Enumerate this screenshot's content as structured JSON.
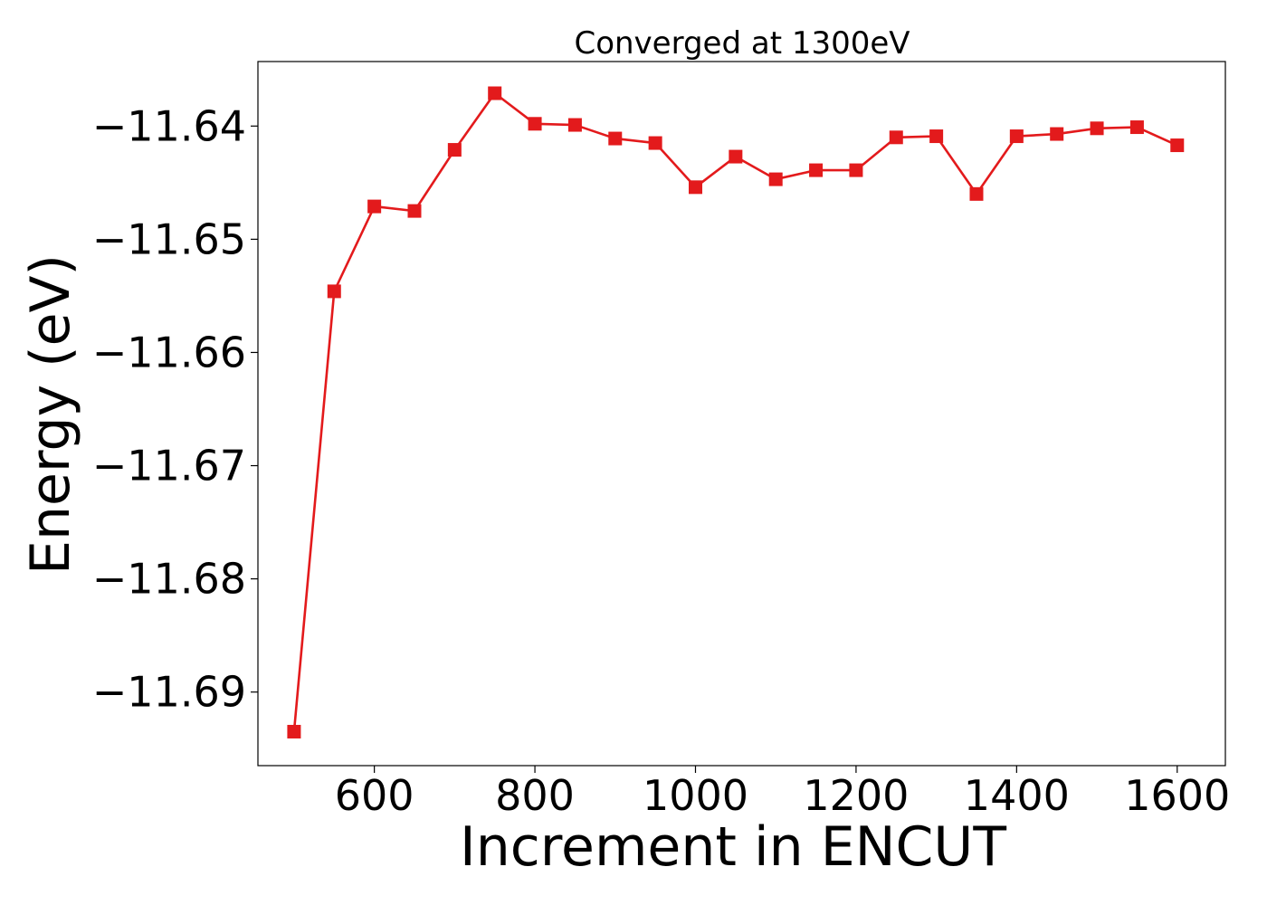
{
  "chart_data": {
    "type": "line",
    "title": "Converged at 1300eV",
    "xlabel": "Increment in ENCUT",
    "ylabel": "Energy (eV)",
    "x": [
      500,
      550,
      600,
      650,
      700,
      750,
      800,
      850,
      900,
      950,
      1000,
      1050,
      1100,
      1150,
      1200,
      1250,
      1300,
      1350,
      1400,
      1450,
      1500,
      1550,
      1600
    ],
    "series": [
      {
        "values": [
          -11.6935,
          -11.6546,
          -11.6471,
          -11.6475,
          -11.6421,
          -11.6371,
          -11.6398,
          -11.6399,
          -11.6411,
          -11.6415,
          -11.6454,
          -11.6427,
          -11.6447,
          -11.6439,
          -11.6439,
          -11.641,
          -11.6409,
          -11.646,
          -11.6409,
          -11.6407,
          -11.6402,
          -11.6401,
          -11.6417
        ],
        "color": "#e31a1c",
        "marker": "square"
      }
    ],
    "xlim": [
      455,
      1660
    ],
    "ylim": [
      -11.6965,
      -11.6343
    ],
    "xticks": [
      600,
      800,
      1000,
      1200,
      1400,
      1600
    ],
    "xtick_labels": [
      "600",
      "800",
      "1000",
      "1200",
      "1400",
      "1600"
    ],
    "yticks": [
      -11.64,
      -11.65,
      -11.66,
      -11.67,
      -11.68,
      -11.69
    ],
    "ytick_labels": [
      "−11.64",
      "−11.65",
      "−11.66",
      "−11.67",
      "−11.68",
      "−11.69"
    ],
    "grid": false,
    "legend": "none"
  }
}
